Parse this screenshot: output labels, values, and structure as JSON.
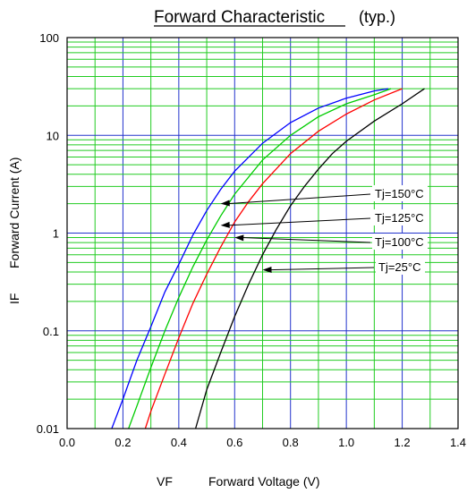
{
  "chart_data": {
    "type": "line",
    "title": "Forward Characteristic",
    "subtitle": "(typ.)",
    "xlabel_symbol": "VF",
    "xlabel": "Forward Voltage  (V)",
    "ylabel_symbol": "IF",
    "ylabel": "Forward Current  (A)",
    "xlim": [
      0.0,
      1.4
    ],
    "ylim": [
      0.01,
      100
    ],
    "yscale": "log",
    "grid": true,
    "x_ticks": [
      "0.0",
      "0.2",
      "0.4",
      "0.6",
      "0.8",
      "1.0",
      "1.2",
      "1.4"
    ],
    "y_ticks": [
      "0.01",
      "0.1",
      "1",
      "10",
      "100"
    ],
    "colors": {
      "minor_grid": "#22cc22",
      "major_grid": "#2233cc",
      "frame": "#000000"
    },
    "series": [
      {
        "name": "Tj=150°C",
        "color": "#0000ff",
        "points": [
          [
            0.16,
            0.01
          ],
          [
            0.2,
            0.02
          ],
          [
            0.25,
            0.05
          ],
          [
            0.3,
            0.11
          ],
          [
            0.35,
            0.25
          ],
          [
            0.4,
            0.48
          ],
          [
            0.45,
            0.95
          ],
          [
            0.5,
            1.7
          ],
          [
            0.55,
            2.8
          ],
          [
            0.6,
            4.3
          ],
          [
            0.7,
            8.3
          ],
          [
            0.8,
            13.5
          ],
          [
            0.9,
            19
          ],
          [
            1.0,
            24
          ],
          [
            1.1,
            28.5
          ],
          [
            1.15,
            30
          ]
        ]
      },
      {
        "name": "Tj=125°C",
        "color": "#00cc00",
        "points": [
          [
            0.22,
            0.01
          ],
          [
            0.25,
            0.017
          ],
          [
            0.3,
            0.042
          ],
          [
            0.35,
            0.1
          ],
          [
            0.4,
            0.22
          ],
          [
            0.45,
            0.45
          ],
          [
            0.5,
            0.85
          ],
          [
            0.55,
            1.5
          ],
          [
            0.6,
            2.5
          ],
          [
            0.7,
            5.6
          ],
          [
            0.8,
            10
          ],
          [
            0.9,
            15.5
          ],
          [
            1.0,
            21
          ],
          [
            1.1,
            26
          ],
          [
            1.16,
            30
          ]
        ]
      },
      {
        "name": "Tj=100°C",
        "color": "#ff0000",
        "points": [
          [
            0.28,
            0.01
          ],
          [
            0.3,
            0.015
          ],
          [
            0.35,
            0.036
          ],
          [
            0.4,
            0.085
          ],
          [
            0.45,
            0.19
          ],
          [
            0.5,
            0.38
          ],
          [
            0.55,
            0.72
          ],
          [
            0.6,
            1.3
          ],
          [
            0.65,
            2.1
          ],
          [
            0.7,
            3.2
          ],
          [
            0.8,
            6.5
          ],
          [
            0.9,
            11
          ],
          [
            1.0,
            16.5
          ],
          [
            1.1,
            23
          ],
          [
            1.2,
            30
          ]
        ]
      },
      {
        "name": "Tj=25°C",
        "color": "#000000",
        "points": [
          [
            0.46,
            0.01
          ],
          [
            0.5,
            0.025
          ],
          [
            0.55,
            0.06
          ],
          [
            0.6,
            0.14
          ],
          [
            0.65,
            0.3
          ],
          [
            0.7,
            0.6
          ],
          [
            0.75,
            1.1
          ],
          [
            0.8,
            1.9
          ],
          [
            0.85,
            3.0
          ],
          [
            0.9,
            4.5
          ],
          [
            0.95,
            6.5
          ],
          [
            1.0,
            8.7
          ],
          [
            1.1,
            14
          ],
          [
            1.2,
            21
          ],
          [
            1.28,
            30
          ]
        ]
      }
    ],
    "annotations": [
      {
        "label": "Tj=150°C",
        "arrow_to": [
          0.55,
          2.0
        ]
      },
      {
        "label": "Tj=125°C",
        "arrow_to": [
          0.55,
          1.2
        ]
      },
      {
        "label": "Tj=100°C",
        "arrow_to": [
          0.6,
          0.9
        ]
      },
      {
        "label": "Tj=25°C",
        "arrow_to": [
          0.7,
          0.42
        ]
      }
    ]
  }
}
